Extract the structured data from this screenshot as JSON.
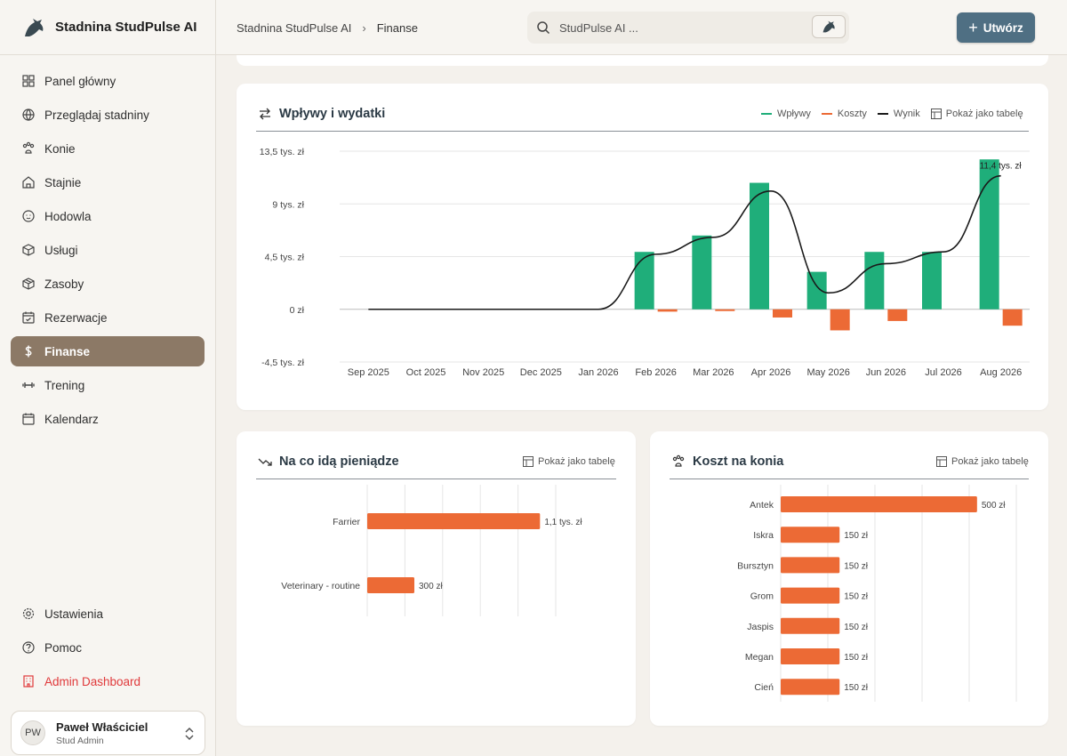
{
  "brand": {
    "name": "Stadnina StudPulse AI"
  },
  "nav": {
    "items": [
      {
        "label": "Panel główny",
        "icon": "dashboard-icon"
      },
      {
        "label": "Przeglądaj stadniny",
        "icon": "globe-icon"
      },
      {
        "label": "Konie",
        "icon": "paw-icon"
      },
      {
        "label": "Stajnie",
        "icon": "home-icon"
      },
      {
        "label": "Hodowla",
        "icon": "baby-icon"
      },
      {
        "label": "Usługi",
        "icon": "package-icon"
      },
      {
        "label": "Zasoby",
        "icon": "box-icon"
      },
      {
        "label": "Rezerwacje",
        "icon": "calendar-check-icon"
      },
      {
        "label": "Finanse",
        "icon": "dollar-icon",
        "active": true
      },
      {
        "label": "Trening",
        "icon": "dumbbell-icon"
      },
      {
        "label": "Kalendarz",
        "icon": "calendar-icon"
      }
    ],
    "bottom": [
      {
        "label": "Ustawienia",
        "icon": "gear-icon"
      },
      {
        "label": "Pomoc",
        "icon": "help-icon"
      },
      {
        "label": "Admin Dashboard",
        "icon": "building-icon",
        "admin": true
      }
    ]
  },
  "user": {
    "initials": "PW",
    "name": "Paweł Właściciel",
    "role": "Stud Admin"
  },
  "header": {
    "breadcrumb": [
      "Stadnina StudPulse AI",
      "Finanse"
    ],
    "search_placeholder": "StudPulse AI ...",
    "create_label": "Utwórz"
  },
  "colors": {
    "income": "#1fae7a",
    "cost": "#ec6a35",
    "result": "#1a1a1a",
    "accent": "#8c7966",
    "button": "#4f6f83"
  },
  "cards": {
    "flow": {
      "title": "Wpływy i wydatki",
      "legend": [
        "Wpływy",
        "Koszty",
        "Wynik"
      ],
      "toggle": "Pokaż jako tabelę"
    },
    "spend": {
      "title": "Na co idą pieniądze",
      "toggle": "Pokaż jako tabelę"
    },
    "horse": {
      "title": "Koszt na konia",
      "toggle": "Pokaż jako tabelę"
    }
  },
  "chart_data": [
    {
      "type": "bar",
      "title": "Wpływy i wydatki",
      "categories": [
        "Sep 2025",
        "Oct 2025",
        "Nov 2025",
        "Dec 2025",
        "Jan 2026",
        "Feb 2026",
        "Mar 2026",
        "Apr 2026",
        "May 2026",
        "Jun 2026",
        "Jul 2026",
        "Aug 2026"
      ],
      "series": [
        {
          "name": "Wpływy",
          "values": [
            0,
            0,
            0,
            0,
            0,
            4900,
            6300,
            10800,
            3200,
            4900,
            4900,
            12800
          ]
        },
        {
          "name": "Koszty",
          "values": [
            0,
            0,
            0,
            0,
            0,
            -200,
            -150,
            -700,
            -1800,
            -1000,
            0,
            -1400
          ]
        },
        {
          "name": "Wynik",
          "values": [
            0,
            0,
            0,
            0,
            0,
            4700,
            6150,
            10100,
            1400,
            3900,
            4900,
            11400
          ]
        }
      ],
      "yticks": [
        "13,5 tys. zł",
        "9 tys. zł",
        "4,5 tys. zł",
        "0 zł",
        "-4,5 tys. zł"
      ],
      "ytick_values": [
        13500,
        9000,
        4500,
        0,
        -4500
      ],
      "ylim": [
        -4500,
        13500
      ],
      "annotation": "11,4 tys. zł",
      "grid": true,
      "legend": "top-right"
    },
    {
      "type": "bar",
      "orientation": "horizontal",
      "title": "Na co idą pieniądze",
      "categories": [
        "Farrier",
        "Veterinary - routine"
      ],
      "values": [
        1100,
        300
      ],
      "value_labels": [
        "1,1 tys. zł",
        "300 zł"
      ],
      "xlim": [
        0,
        1200
      ],
      "grid": true
    },
    {
      "type": "bar",
      "orientation": "horizontal",
      "title": "Koszt na konia",
      "categories": [
        "Antek",
        "Iskra",
        "Bursztyn",
        "Grom",
        "Jaspis",
        "Megan",
        "Cień"
      ],
      "values": [
        500,
        150,
        150,
        150,
        150,
        150,
        150
      ],
      "value_labels": [
        "500 zł",
        "150 zł",
        "150 zł",
        "150 zł",
        "150 zł",
        "150 zł",
        "150 zł"
      ],
      "xlim": [
        0,
        600
      ],
      "grid": true
    }
  ]
}
